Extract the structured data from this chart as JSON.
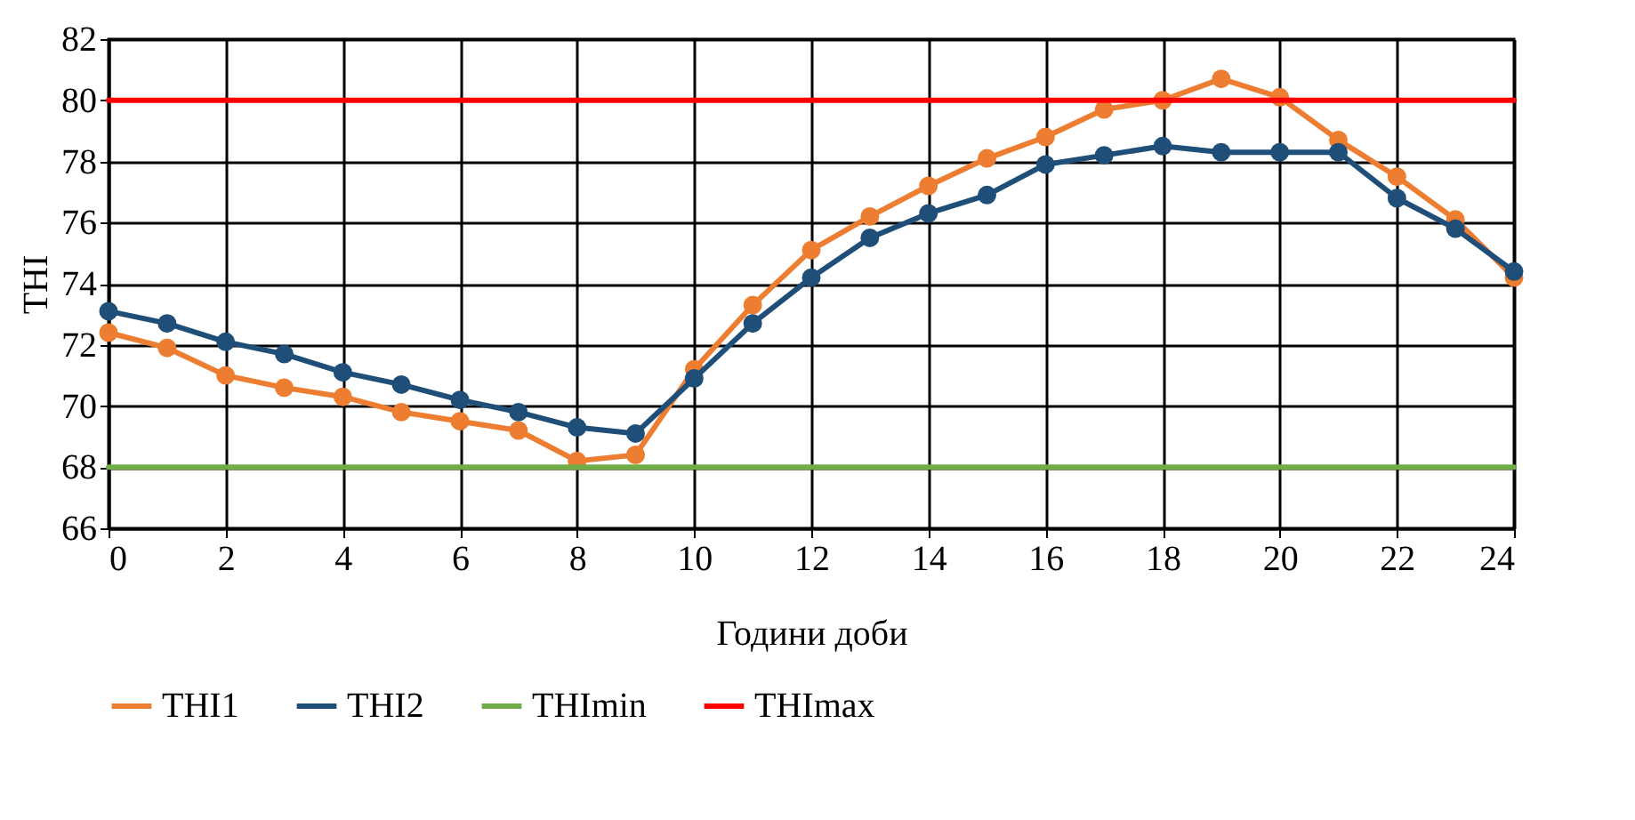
{
  "chart_data": {
    "type": "line",
    "xlabel": "Години доби",
    "ylabel": "THI",
    "x": [
      0,
      1,
      2,
      3,
      4,
      5,
      6,
      7,
      8,
      9,
      10,
      11,
      12,
      13,
      14,
      15,
      16,
      17,
      18,
      19,
      20,
      21,
      22,
      23,
      24
    ],
    "series": [
      {
        "name": "THI1",
        "color": "#ed7d31",
        "marker": "circle",
        "values": [
          72.4,
          71.9,
          71.0,
          70.6,
          70.3,
          69.8,
          69.5,
          69.2,
          68.2,
          68.4,
          71.2,
          73.3,
          75.1,
          76.2,
          77.2,
          78.1,
          78.8,
          79.7,
          80.0,
          80.7,
          80.1,
          78.7,
          77.5,
          76.1,
          74.2
        ]
      },
      {
        "name": "THI2",
        "color": "#1f4e79",
        "marker": "circle",
        "values": [
          73.1,
          72.7,
          72.1,
          71.7,
          71.1,
          70.7,
          70.2,
          69.8,
          69.3,
          69.1,
          70.9,
          72.7,
          74.2,
          75.5,
          76.3,
          76.9,
          77.9,
          78.2,
          78.5,
          78.3,
          78.3,
          78.3,
          76.8,
          75.8,
          74.4
        ]
      },
      {
        "name": "THImin",
        "color": "#70ad47",
        "marker": "none",
        "values": [
          68,
          68,
          68,
          68,
          68,
          68,
          68,
          68,
          68,
          68,
          68,
          68,
          68,
          68,
          68,
          68,
          68,
          68,
          68,
          68,
          68,
          68,
          68,
          68,
          68
        ]
      },
      {
        "name": "THImax",
        "color": "#ff0000",
        "marker": "none",
        "values": [
          80,
          80,
          80,
          80,
          80,
          80,
          80,
          80,
          80,
          80,
          80,
          80,
          80,
          80,
          80,
          80,
          80,
          80,
          80,
          80,
          80,
          80,
          80,
          80,
          80
        ]
      }
    ],
    "xlim": [
      0,
      24
    ],
    "xticks": [
      0,
      2,
      4,
      6,
      8,
      10,
      12,
      14,
      16,
      18,
      20,
      22,
      24
    ],
    "ylim": [
      66,
      82
    ],
    "yticks": [
      66,
      68,
      70,
      72,
      74,
      76,
      78,
      80,
      82
    ],
    "grid": true,
    "legend": "bottom"
  }
}
